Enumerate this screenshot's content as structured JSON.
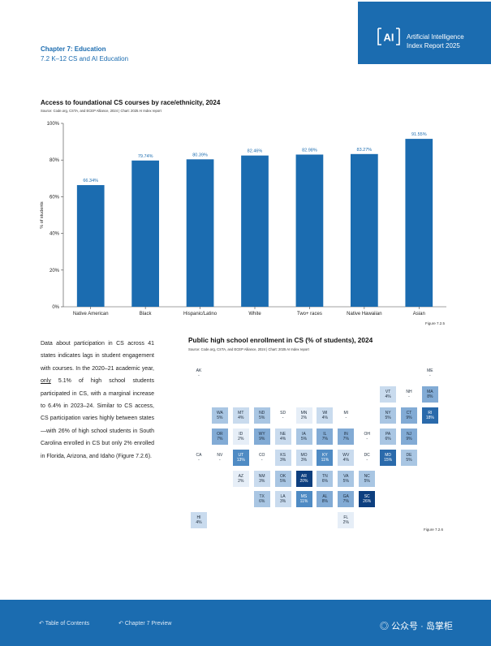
{
  "brand": {
    "logo_text": "AI",
    "line1": "Artificial Intelligence",
    "line2": "Index Report 2025"
  },
  "chapter": {
    "title": "Chapter 7: Education",
    "section": "7.2 K–12 CS and AI Education"
  },
  "chart_data": {
    "type": "bar",
    "title": "Access to foundational CS courses by race/ethnicity, 2024",
    "source": "Source: Code.org, CSTA, and ECEP Alliance, 2024 | Chart: 2025 AI Index report",
    "categories": [
      "Native American",
      "Black",
      "Hispanic/Latino",
      "White",
      "Two+ races",
      "Native Hawaiian",
      "Asian"
    ],
    "values": [
      66.34,
      79.74,
      80.39,
      82.46,
      82.98,
      83.27,
      91.55
    ],
    "data_labels": [
      "66.34%",
      "79.74%",
      "80.39%",
      "82.46%",
      "82.98%",
      "83.27%",
      "91.55%"
    ],
    "ylabel": "% of students",
    "ylim": [
      0,
      100
    ],
    "yticks": [
      0,
      20,
      40,
      60,
      80,
      100
    ],
    "ytick_labels": [
      "0%",
      "20%",
      "40%",
      "60%",
      "80%",
      "100%"
    ],
    "bar_color": "#1b6cb0",
    "figure": "Figure 7.2.5"
  },
  "paragraph": {
    "part1": "Data about participation in CS across 41 states indicates lags in student engagement with courses. In the 2020–21 academic year, ",
    "underlined": "only",
    "part2": " 5.1% of high school students participated in CS, with a marginal increase to 6.4% in 2023–24. Similar to CS access, CS participation varies highly between states—with 26% of high school students in South Carolina enrolled in CS but only 2% enrolled in Florida, Arizona, and Idaho (Figure 7.2.6)."
  },
  "map": {
    "title": "Public high school enrollment in CS (% of students), 2024",
    "source": "Source: Code.org, CSTA, and ECEP Alliance, 2024 | Chart: 2025 AI Index report",
    "figure": "Figure 7.2.6",
    "states": [
      {
        "abbr": "AK",
        "value": "-",
        "pct": null,
        "col": 0,
        "row": 0
      },
      {
        "abbr": "ME",
        "value": "-",
        "pct": null,
        "col": 11,
        "row": 0
      },
      {
        "abbr": "VT",
        "value": "4%",
        "pct": 4,
        "col": 9,
        "row": 1
      },
      {
        "abbr": "NH",
        "value": "-",
        "pct": null,
        "col": 10,
        "row": 1
      },
      {
        "abbr": "MA",
        "value": "8%",
        "pct": 8,
        "col": 11,
        "row": 1
      },
      {
        "abbr": "WA",
        "value": "5%",
        "pct": 5,
        "col": 1,
        "row": 2
      },
      {
        "abbr": "MT",
        "value": "4%",
        "pct": 4,
        "col": 2,
        "row": 2
      },
      {
        "abbr": "ND",
        "value": "5%",
        "pct": 5,
        "col": 3,
        "row": 2
      },
      {
        "abbr": "SD",
        "value": "-",
        "pct": null,
        "col": 4,
        "row": 2
      },
      {
        "abbr": "MN",
        "value": "2%",
        "pct": 2,
        "col": 5,
        "row": 2
      },
      {
        "abbr": "WI",
        "value": "4%",
        "pct": 4,
        "col": 6,
        "row": 2
      },
      {
        "abbr": "MI",
        "value": "-",
        "pct": null,
        "col": 7,
        "row": 2
      },
      {
        "abbr": "NY",
        "value": "5%",
        "pct": 5,
        "col": 9,
        "row": 2
      },
      {
        "abbr": "CT",
        "value": "9%",
        "pct": 9,
        "col": 10,
        "row": 2
      },
      {
        "abbr": "RI",
        "value": "18%",
        "pct": 18,
        "col": 11,
        "row": 2
      },
      {
        "abbr": "OR",
        "value": "7%",
        "pct": 7,
        "col": 1,
        "row": 3
      },
      {
        "abbr": "ID",
        "value": "2%",
        "pct": 2,
        "col": 2,
        "row": 3
      },
      {
        "abbr": "WY",
        "value": "9%",
        "pct": 9,
        "col": 3,
        "row": 3
      },
      {
        "abbr": "NE",
        "value": "4%",
        "pct": 4,
        "col": 4,
        "row": 3
      },
      {
        "abbr": "IA",
        "value": "5%",
        "pct": 5,
        "col": 5,
        "row": 3
      },
      {
        "abbr": "IL",
        "value": "7%",
        "pct": 7,
        "col": 6,
        "row": 3
      },
      {
        "abbr": "IN",
        "value": "7%",
        "pct": 7,
        "col": 7,
        "row": 3
      },
      {
        "abbr": "OH",
        "value": "-",
        "pct": null,
        "col": 8,
        "row": 3
      },
      {
        "abbr": "PA",
        "value": "6%",
        "pct": 6,
        "col": 9,
        "row": 3
      },
      {
        "abbr": "NJ",
        "value": "9%",
        "pct": 9,
        "col": 10,
        "row": 3
      },
      {
        "abbr": "CA",
        "value": "-",
        "pct": null,
        "col": 0,
        "row": 4
      },
      {
        "abbr": "NV",
        "value": "-",
        "pct": null,
        "col": 1,
        "row": 4
      },
      {
        "abbr": "UT",
        "value": "13%",
        "pct": 13,
        "col": 2,
        "row": 4
      },
      {
        "abbr": "CO",
        "value": "-",
        "pct": null,
        "col": 3,
        "row": 4
      },
      {
        "abbr": "KS",
        "value": "3%",
        "pct": 3,
        "col": 4,
        "row": 4
      },
      {
        "abbr": "MO",
        "value": "3%",
        "pct": 3,
        "col": 5,
        "row": 4
      },
      {
        "abbr": "KY",
        "value": "11%",
        "pct": 11,
        "col": 6,
        "row": 4
      },
      {
        "abbr": "WV",
        "value": "4%",
        "pct": 4,
        "col": 7,
        "row": 4
      },
      {
        "abbr": "DC",
        "value": "-",
        "pct": null,
        "col": 8,
        "row": 4
      },
      {
        "abbr": "MD",
        "value": "15%",
        "pct": 15,
        "col": 9,
        "row": 4
      },
      {
        "abbr": "DE",
        "value": "5%",
        "pct": 5,
        "col": 10,
        "row": 4
      },
      {
        "abbr": "AZ",
        "value": "2%",
        "pct": 2,
        "col": 2,
        "row": 5
      },
      {
        "abbr": "NM",
        "value": "3%",
        "pct": 3,
        "col": 3,
        "row": 5
      },
      {
        "abbr": "OK",
        "value": "5%",
        "pct": 5,
        "col": 4,
        "row": 5
      },
      {
        "abbr": "AR",
        "value": "20%",
        "pct": 20,
        "col": 5,
        "row": 5
      },
      {
        "abbr": "TN",
        "value": "6%",
        "pct": 6,
        "col": 6,
        "row": 5
      },
      {
        "abbr": "VA",
        "value": "5%",
        "pct": 5,
        "col": 7,
        "row": 5
      },
      {
        "abbr": "NC",
        "value": "5%",
        "pct": 5,
        "col": 8,
        "row": 5
      },
      {
        "abbr": "TX",
        "value": "6%",
        "pct": 6,
        "col": 3,
        "row": 6
      },
      {
        "abbr": "LA",
        "value": "3%",
        "pct": 3,
        "col": 4,
        "row": 6
      },
      {
        "abbr": "MS",
        "value": "11%",
        "pct": 11,
        "col": 5,
        "row": 6
      },
      {
        "abbr": "AL",
        "value": "8%",
        "pct": 8,
        "col": 6,
        "row": 6
      },
      {
        "abbr": "GA",
        "value": "7%",
        "pct": 7,
        "col": 7,
        "row": 6
      },
      {
        "abbr": "SC",
        "value": "26%",
        "pct": 26,
        "col": 8,
        "row": 6
      },
      {
        "abbr": "HI",
        "value": "4%",
        "pct": 4,
        "col": 0,
        "row": 7
      },
      {
        "abbr": "FL",
        "value": "2%",
        "pct": 2,
        "col": 7,
        "row": 7
      }
    ]
  },
  "footer": {
    "toc": "Table of Contents",
    "preview": "Chapter 7 Preview",
    "wechat": "公众号 · 岛掌柜"
  }
}
